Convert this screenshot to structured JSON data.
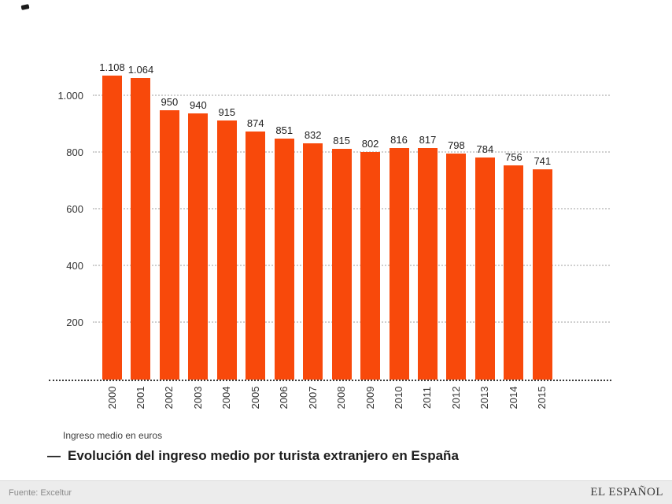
{
  "chart_data": {
    "type": "bar",
    "categories": [
      "2000",
      "2001",
      "2002",
      "2003",
      "2004",
      "2005",
      "2006",
      "2007",
      "2008",
      "2009",
      "2010",
      "2011",
      "2012",
      "2013",
      "2014",
      "2015"
    ],
    "values": [
      1108,
      1064,
      950,
      940,
      915,
      874,
      851,
      832,
      815,
      802,
      816,
      817,
      798,
      784,
      756,
      741
    ],
    "value_labels": [
      "1.108",
      "1.064",
      "950",
      "940",
      "915",
      "874",
      "851",
      "832",
      "815",
      "802",
      "816",
      "817",
      "798",
      "784",
      "756",
      "741"
    ],
    "title": "Evolución del ingreso medio por turista extranjero en España",
    "xlabel": "",
    "ylabel": "Ingreso medio en euros",
    "ylim": [
      0,
      1122
    ],
    "yticks": [
      200,
      400,
      600,
      800,
      1000
    ],
    "ytick_labels": [
      "200",
      "400",
      "600",
      "800",
      "1.000"
    ],
    "grid": "horizontal dotted",
    "legend": "none",
    "bar_color": "#f8490b"
  },
  "caption": {
    "unit_label": "Ingreso medio en euros",
    "dash": "—",
    "title": "Evolución del ingreso medio por turista extranjero en España"
  },
  "footer": {
    "source": "Fuente: Exceltur",
    "brand": "EL ESPAÑOL"
  }
}
